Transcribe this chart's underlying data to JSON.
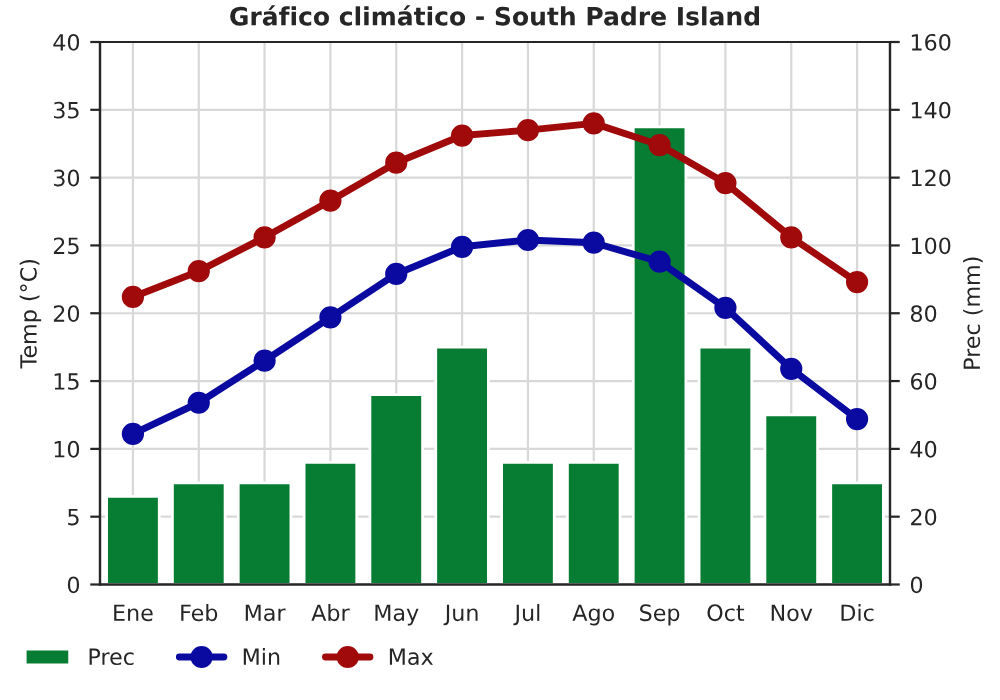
{
  "chart_data": {
    "type": "line",
    "title": "Gráfico climático - South Padre Island",
    "categories": [
      "Ene",
      "Feb",
      "Mar",
      "Abr",
      "May",
      "Jun",
      "Jul",
      "Ago",
      "Sep",
      "Oct",
      "Nov",
      "Dic"
    ],
    "series": [
      {
        "name": "Prec",
        "type": "bar",
        "axis": "y2",
        "color": "#067d32",
        "values": [
          26,
          30,
          30,
          36,
          56,
          70,
          36,
          36,
          135,
          70,
          50,
          30
        ]
      },
      {
        "name": "Min",
        "color": "#0a0aa0",
        "values": [
          11.1,
          13.4,
          16.5,
          19.7,
          22.9,
          24.9,
          25.4,
          25.2,
          23.8,
          20.4,
          15.9,
          12.2
        ]
      },
      {
        "name": "Max",
        "color": "#a00a0a",
        "values": [
          21.2,
          23.1,
          25.6,
          28.3,
          31.1,
          33.1,
          33.5,
          34.0,
          32.4,
          29.6,
          25.6,
          22.3
        ]
      }
    ],
    "ylabel": "Temp (°C)",
    "y2label": "Prec (mm)",
    "ylim": [
      0,
      40
    ],
    "yticks": [
      0,
      5,
      10,
      15,
      20,
      25,
      30,
      35,
      40
    ],
    "y2lim": [
      0,
      160
    ],
    "y2ticks": [
      0,
      20,
      40,
      60,
      80,
      100,
      120,
      140,
      160
    ],
    "grid": true,
    "legend": "bottom",
    "marker": "circle",
    "line_style": "solid"
  }
}
